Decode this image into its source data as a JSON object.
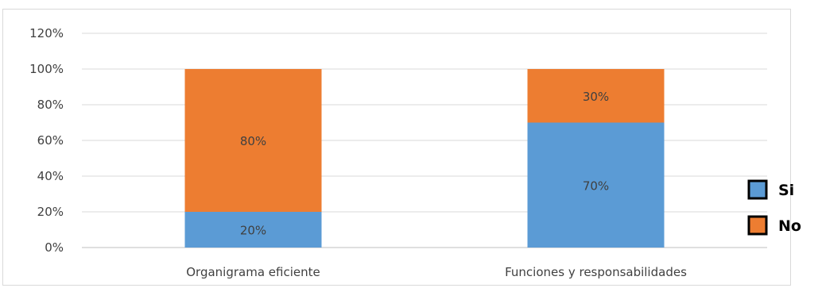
{
  "chart_data": {
    "type": "bar",
    "stacked": true,
    "title": "",
    "xlabel": "",
    "ylabel": "",
    "ylim": [
      0,
      120
    ],
    "y_ticks": [
      "0%",
      "20%",
      "40%",
      "60%",
      "80%",
      "100%",
      "120%"
    ],
    "categories": [
      "Organigrama eficiente",
      "Funciones y responsabilidades"
    ],
    "series": [
      {
        "name": "Si",
        "values": [
          20,
          70
        ],
        "labels": [
          "20%",
          "70%"
        ],
        "color": "#5b9bd5"
      },
      {
        "name": "No",
        "values": [
          80,
          30
        ],
        "labels": [
          "80%",
          "30%"
        ],
        "color": "#ed7d31"
      }
    ],
    "grid": true,
    "legend_position": "right"
  }
}
